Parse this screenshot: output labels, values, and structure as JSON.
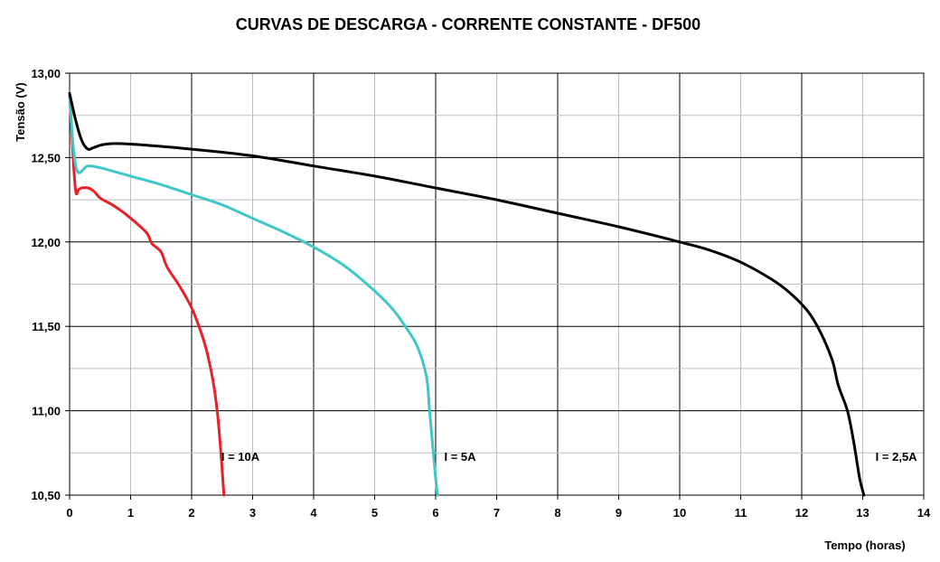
{
  "chart_data": {
    "type": "line",
    "title": "CURVAS DE DESCARGA - CORRENTE CONSTANTE - DF500",
    "xlabel": "Tempo (horas)",
    "ylabel": "Tensão (V)",
    "xlim": [
      0,
      14
    ],
    "ylim": [
      10.5,
      13.0
    ],
    "x_ticks": [
      "0",
      "1",
      "2",
      "3",
      "4",
      "5",
      "6",
      "7",
      "8",
      "9",
      "10",
      "11",
      "12",
      "13",
      "14"
    ],
    "y_ticks": [
      "10,50",
      "11,00",
      "11,50",
      "12,00",
      "12,50",
      "13,00"
    ],
    "grid": true,
    "series": [
      {
        "name": "I = 10A",
        "color": "#e8202a",
        "points": [
          [
            0,
            12.88
          ],
          [
            0.05,
            12.55
          ],
          [
            0.1,
            12.3
          ],
          [
            0.15,
            12.31
          ],
          [
            0.2,
            12.32
          ],
          [
            0.3,
            12.32
          ],
          [
            0.4,
            12.3
          ],
          [
            0.5,
            12.26
          ],
          [
            0.7,
            12.22
          ],
          [
            0.9,
            12.17
          ],
          [
            1.1,
            12.11
          ],
          [
            1.25,
            12.06
          ],
          [
            1.3,
            12.03
          ],
          [
            1.35,
            11.99
          ],
          [
            1.5,
            11.94
          ],
          [
            1.6,
            11.85
          ],
          [
            1.8,
            11.74
          ],
          [
            2.0,
            11.61
          ],
          [
            2.15,
            11.47
          ],
          [
            2.25,
            11.35
          ],
          [
            2.35,
            11.18
          ],
          [
            2.42,
            11.0
          ],
          [
            2.47,
            10.8
          ],
          [
            2.5,
            10.65
          ],
          [
            2.53,
            10.5
          ]
        ],
        "label_text": "I = 10A",
        "label_pos": [
          2.8,
          10.73
        ]
      },
      {
        "name": "I = 5A",
        "color": "#3fc7c7",
        "points": [
          [
            0,
            12.88
          ],
          [
            0.05,
            12.6
          ],
          [
            0.1,
            12.45
          ],
          [
            0.15,
            12.41
          ],
          [
            0.2,
            12.42
          ],
          [
            0.3,
            12.45
          ],
          [
            0.5,
            12.44
          ],
          [
            0.7,
            12.42
          ],
          [
            1.0,
            12.39
          ],
          [
            1.5,
            12.34
          ],
          [
            2.0,
            12.28
          ],
          [
            2.5,
            12.22
          ],
          [
            3.0,
            12.14
          ],
          [
            3.5,
            12.06
          ],
          [
            4.0,
            11.97
          ],
          [
            4.5,
            11.86
          ],
          [
            5.0,
            11.71
          ],
          [
            5.3,
            11.6
          ],
          [
            5.5,
            11.5
          ],
          [
            5.7,
            11.38
          ],
          [
            5.85,
            11.2
          ],
          [
            5.9,
            11.0
          ],
          [
            5.95,
            10.8
          ],
          [
            6.0,
            10.6
          ],
          [
            6.03,
            10.5
          ]
        ],
        "label_text": "I = 5A",
        "label_pos": [
          6.4,
          10.73
        ]
      },
      {
        "name": "I = 2,5A",
        "color": "#000000",
        "points": [
          [
            0,
            12.88
          ],
          [
            0.1,
            12.72
          ],
          [
            0.2,
            12.6
          ],
          [
            0.3,
            12.55
          ],
          [
            0.4,
            12.56
          ],
          [
            0.6,
            12.58
          ],
          [
            1.0,
            12.58
          ],
          [
            2.0,
            12.55
          ],
          [
            3.0,
            12.51
          ],
          [
            4.0,
            12.45
          ],
          [
            5.0,
            12.39
          ],
          [
            6.0,
            12.32
          ],
          [
            7.0,
            12.25
          ],
          [
            8.0,
            12.17
          ],
          [
            9.0,
            12.09
          ],
          [
            10.0,
            12.0
          ],
          [
            10.5,
            11.95
          ],
          [
            11.0,
            11.88
          ],
          [
            11.5,
            11.78
          ],
          [
            11.8,
            11.7
          ],
          [
            12.1,
            11.59
          ],
          [
            12.3,
            11.47
          ],
          [
            12.5,
            11.3
          ],
          [
            12.6,
            11.15
          ],
          [
            12.75,
            11.0
          ],
          [
            12.85,
            10.82
          ],
          [
            12.95,
            10.6
          ],
          [
            13.02,
            10.5
          ]
        ],
        "label_text": "I = 2,5A",
        "label_pos": [
          13.55,
          10.73
        ]
      }
    ]
  }
}
